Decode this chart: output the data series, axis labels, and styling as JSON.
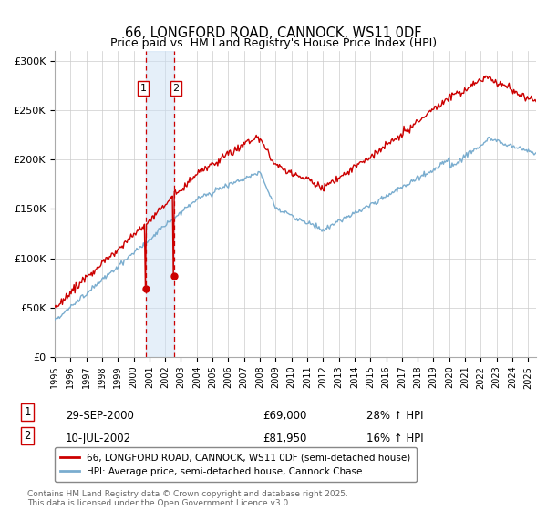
{
  "title": "66, LONGFORD ROAD, CANNOCK, WS11 0DF",
  "subtitle": "Price paid vs. HM Land Registry's House Price Index (HPI)",
  "ylabel_ticks": [
    "£0",
    "£50K",
    "£100K",
    "£150K",
    "£200K",
    "£250K",
    "£300K"
  ],
  "ytick_vals": [
    0,
    50000,
    100000,
    150000,
    200000,
    250000,
    300000
  ],
  "ylim": [
    0,
    310000
  ],
  "xlim_start": 1995.0,
  "xlim_end": 2025.5,
  "purchase1_date": 2000.75,
  "purchase2_date": 2002.54,
  "purchase1_price": 69000,
  "purchase2_price": 81950,
  "legend_line1": "66, LONGFORD ROAD, CANNOCK, WS11 0DF (semi-detached house)",
  "legend_line2": "HPI: Average price, semi-detached house, Cannock Chase",
  "footer": "Contains HM Land Registry data © Crown copyright and database right 2025.\nThis data is licensed under the Open Government Licence v3.0.",
  "line_color_red": "#cc0000",
  "line_color_blue": "#7aadcf",
  "background_color": "#ffffff",
  "grid_color": "#cccccc",
  "shade_color": "#cce0f5",
  "row1_date": "29-SEP-2000",
  "row1_price": "£69,000",
  "row1_hpi": "28% ↑ HPI",
  "row2_date": "10-JUL-2002",
  "row2_price": "£81,950",
  "row2_hpi": "16% ↑ HPI"
}
